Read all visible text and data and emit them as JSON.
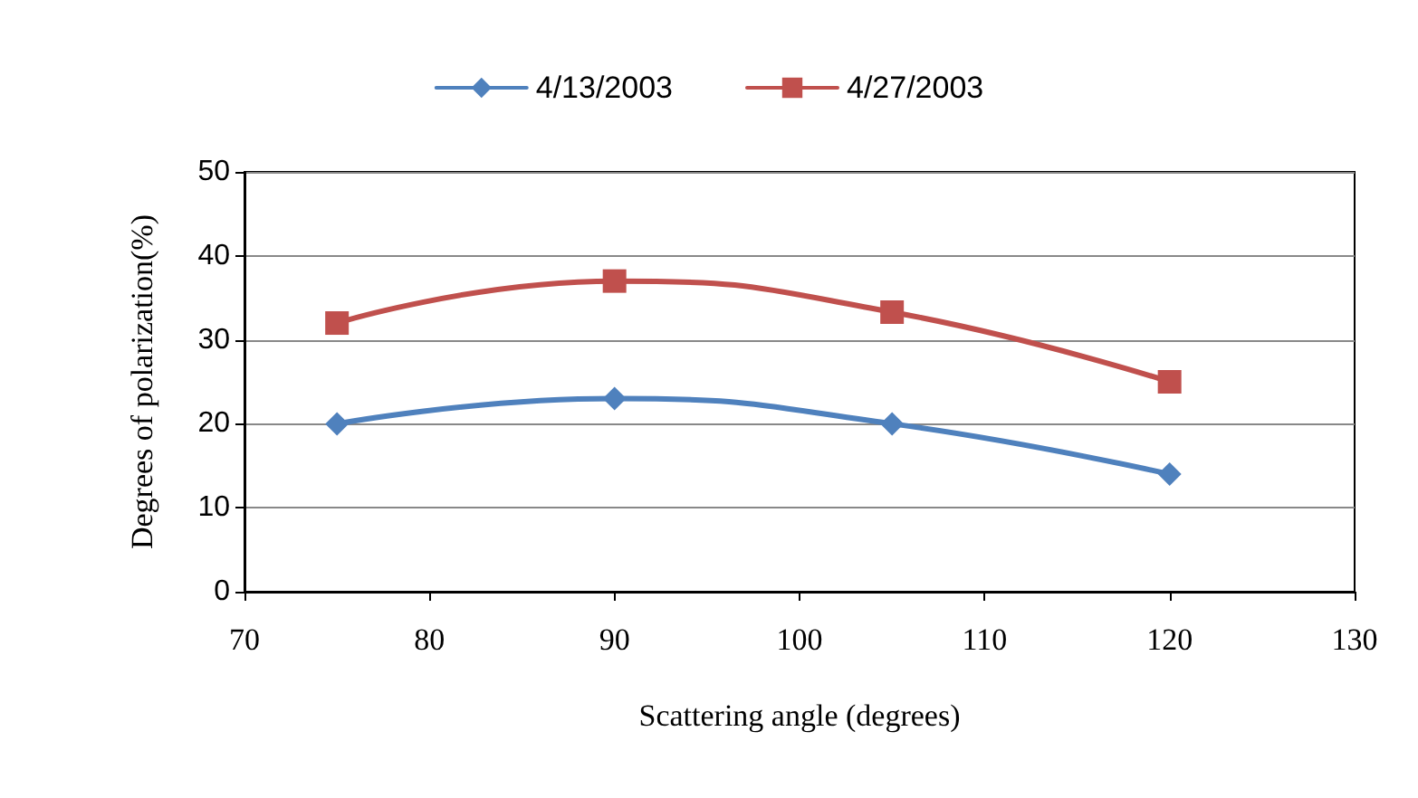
{
  "chart_data": {
    "type": "line",
    "xlabel": "Scattering angle (degrees)",
    "ylabel": "Degrees of polarization(%)",
    "x": [
      75,
      90,
      105,
      120
    ],
    "series": [
      {
        "name": "4/13/2003",
        "color": "#4f81bd",
        "marker": "diamond",
        "values": [
          20,
          23,
          20,
          14
        ]
      },
      {
        "name": "4/27/2003",
        "color": "#c0504d",
        "marker": "square",
        "values": [
          32,
          37,
          33.3,
          25
        ]
      }
    ],
    "xlim": [
      70,
      130
    ],
    "xticks": [
      70,
      80,
      90,
      100,
      110,
      120,
      130
    ],
    "ylim": [
      0,
      50
    ],
    "yticks": [
      0,
      10,
      20,
      30,
      40,
      50
    ],
    "grid": "y",
    "legend": "top",
    "line_style": "solid"
  }
}
